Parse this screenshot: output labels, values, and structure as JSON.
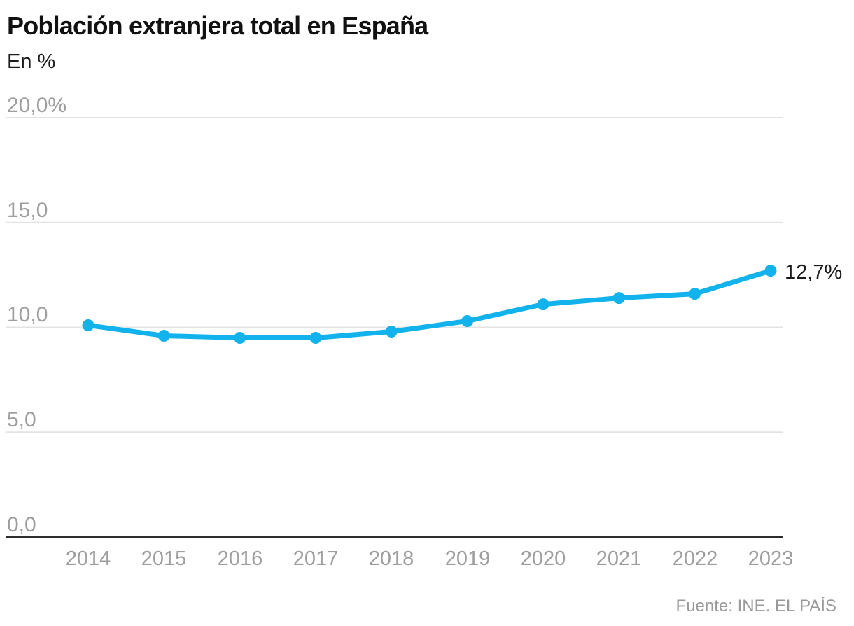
{
  "header": {
    "title": "Población extranjera total en España",
    "subtitle": "En %"
  },
  "footer": {
    "source": "Fuente: INE. EL PAÍS"
  },
  "chart_data": {
    "type": "line",
    "title": "Población extranjera total en España",
    "subtitle": "En %",
    "xlabel": "",
    "ylabel": "En %",
    "x": [
      2014,
      2015,
      2016,
      2017,
      2018,
      2019,
      2020,
      2021,
      2022,
      2023
    ],
    "series": [
      {
        "name": "Población extranjera total (%)",
        "values": [
          10.1,
          9.6,
          9.5,
          9.5,
          9.8,
          10.3,
          11.1,
          11.4,
          11.6,
          12.7
        ]
      }
    ],
    "ylim": [
      0,
      20
    ],
    "ytick_values": [
      20,
      15,
      10,
      5,
      0
    ],
    "ytick_labels": [
      "20,0%",
      "15,0",
      "10,0",
      "5,0",
      "0,0"
    ],
    "end_label": "12,7%",
    "grid": true,
    "legend_position": "none",
    "colors": {
      "line": "#12b2ec",
      "grid": "#e3e3e3",
      "axis": "#2d2d2d",
      "tick_text": "#9e9e9e",
      "title_text": "#111111",
      "end_label_text": "#1a1a1a"
    }
  }
}
